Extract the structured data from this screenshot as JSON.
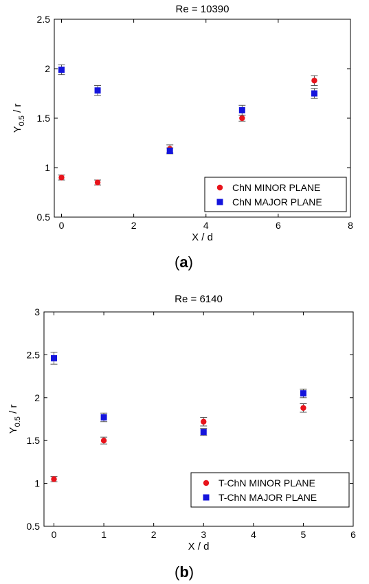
{
  "colors": {
    "minor": "#e8131b",
    "major": "#1414dc",
    "axis": "#000000",
    "background": "#ffffff"
  },
  "figure_labels": {
    "a": {
      "open": "(",
      "letter": "a",
      "close": ")"
    },
    "b": {
      "open": "(",
      "letter": "b",
      "close": ")"
    }
  },
  "chart_data": [
    {
      "id": "a",
      "type": "scatter",
      "title": "Re = 10390",
      "xlabel": "X / d",
      "ylabel_main": "Y",
      "ylabel_sub": "0.5",
      "ylabel_rest": " / r",
      "xlim": [
        -0.2,
        8
      ],
      "ylim": [
        0.5,
        2.5
      ],
      "xticks": [
        0,
        2,
        4,
        6,
        8
      ],
      "xtick_labels": [
        "0",
        "2",
        "4",
        "6",
        "8"
      ],
      "yticks": [
        0.5,
        1,
        1.5,
        2,
        2.5
      ],
      "ytick_labels": [
        "0.5",
        "1",
        "1.5",
        "2",
        "2.5"
      ],
      "grid": false,
      "legend_position": "bottom-right",
      "series": [
        {
          "name": "ChN MINOR PLANE",
          "marker": "circle",
          "color_key": "minor",
          "x": [
            0,
            1,
            3,
            5,
            7
          ],
          "y": [
            0.9,
            0.85,
            1.19,
            1.5,
            1.88
          ],
          "err": [
            0.025,
            0.025,
            0.04,
            0.03,
            0.05
          ]
        },
        {
          "name": "ChN MAJOR PLANE",
          "marker": "square",
          "color_key": "major",
          "x": [
            0,
            1,
            3,
            5,
            7
          ],
          "y": [
            1.99,
            1.78,
            1.17,
            1.58,
            1.75
          ],
          "err": [
            0.05,
            0.05,
            0.03,
            0.05,
            0.05
          ]
        }
      ]
    },
    {
      "id": "b",
      "type": "scatter",
      "title": "Re = 6140",
      "xlabel": "X / d",
      "ylabel_main": "Y",
      "ylabel_sub": "0.5",
      "ylabel_rest": " / r",
      "xlim": [
        -0.2,
        6
      ],
      "ylim": [
        0.5,
        3
      ],
      "xticks": [
        0,
        1,
        2,
        3,
        4,
        5,
        6
      ],
      "xtick_labels": [
        "0",
        "1",
        "2",
        "3",
        "4",
        "5",
        "6"
      ],
      "yticks": [
        0.5,
        1,
        1.5,
        2,
        2.5,
        3
      ],
      "ytick_labels": [
        "0.5",
        "1",
        "1.5",
        "2",
        "2.5",
        "3"
      ],
      "grid": false,
      "legend_position": "bottom-right",
      "series": [
        {
          "name": "T-ChN MINOR PLANE",
          "marker": "circle",
          "color_key": "minor",
          "x": [
            0,
            1,
            3,
            5
          ],
          "y": [
            1.05,
            1.5,
            1.72,
            1.88
          ],
          "err": [
            0.03,
            0.04,
            0.05,
            0.05
          ]
        },
        {
          "name": "T-ChN MAJOR PLANE",
          "marker": "square",
          "color_key": "major",
          "x": [
            0,
            1,
            3,
            5
          ],
          "y": [
            2.46,
            1.77,
            1.6,
            2.05
          ],
          "err": [
            0.07,
            0.05,
            0.04,
            0.05
          ]
        }
      ]
    }
  ]
}
